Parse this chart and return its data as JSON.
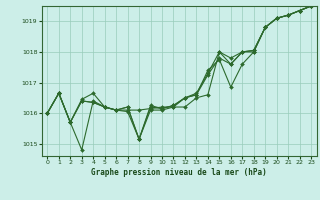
{
  "title": "Graphe pression niveau de la mer (hPa)",
  "background_color": "#cceee8",
  "grid_color": "#99ccbb",
  "line_color": "#2d6a2d",
  "xlim": [
    -0.5,
    23.5
  ],
  "ylim": [
    1014.6,
    1019.5
  ],
  "yticks": [
    1015,
    1016,
    1017,
    1018,
    1019
  ],
  "xticks": [
    0,
    1,
    2,
    3,
    4,
    5,
    6,
    7,
    8,
    9,
    10,
    11,
    12,
    13,
    14,
    15,
    16,
    17,
    18,
    19,
    20,
    21,
    22,
    23
  ],
  "series": [
    [
      1016.0,
      1016.65,
      1015.7,
      1014.8,
      1016.4,
      1016.2,
      1016.1,
      1016.1,
      1016.1,
      1016.15,
      1016.2,
      1016.2,
      1016.2,
      1016.5,
      1016.6,
      1018.0,
      1017.8,
      1018.0,
      1018.0,
      1018.8,
      1019.1,
      1019.2,
      1019.35,
      1019.5
    ],
    [
      1016.0,
      1016.65,
      1015.7,
      1016.45,
      1016.65,
      1016.2,
      1016.1,
      1016.05,
      1015.15,
      1016.1,
      1016.1,
      1016.2,
      1016.5,
      1016.6,
      1017.4,
      1017.75,
      1016.85,
      1017.6,
      1018.0,
      1018.8,
      1019.1,
      1019.2,
      1019.35,
      1019.5
    ],
    [
      1016.0,
      1016.65,
      1015.7,
      1016.4,
      1016.35,
      1016.2,
      1016.1,
      1016.2,
      1015.15,
      1016.25,
      1016.15,
      1016.25,
      1016.5,
      1016.6,
      1017.25,
      1017.8,
      1017.6,
      1018.0,
      1018.05,
      1018.8,
      1019.1,
      1019.2,
      1019.35,
      1019.5
    ],
    [
      1016.0,
      1016.65,
      1015.7,
      1016.4,
      1016.35,
      1016.2,
      1016.1,
      1016.2,
      1015.15,
      1016.2,
      1016.15,
      1016.25,
      1016.5,
      1016.65,
      1017.3,
      1018.0,
      1017.6,
      1018.0,
      1018.05,
      1018.8,
      1019.1,
      1019.2,
      1019.35,
      1019.5
    ]
  ]
}
